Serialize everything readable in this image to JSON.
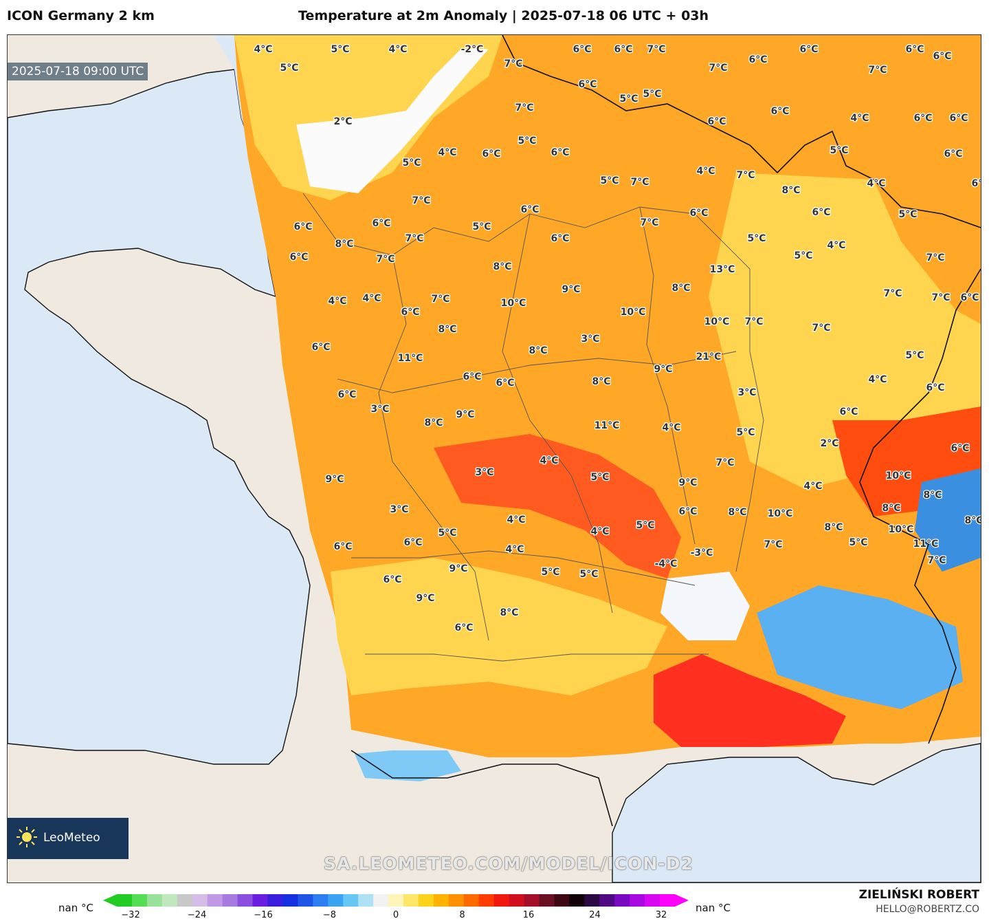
{
  "header": {
    "model_title": "ICON Germany 2 km",
    "map_title": "Temperature at 2m Anomaly | 2025-07-18 06 UTC + 03h"
  },
  "map": {
    "valid_time": "2025-07-18 09:00 UTC",
    "watermark": "SA.LEOMETEO.COM/MODEL/ICON-D2",
    "logo_text": "LeoMeteo",
    "colors": {
      "sea": "#dbe9f7",
      "land_outside": "#efe9df",
      "warm_orange": "#ffa726",
      "hot_red": "#ff3d1f",
      "cold_blue": "#3a8fe0"
    },
    "labels": [
      "4°C",
      "5°C",
      "4°C",
      "-2°C",
      "5°C",
      "2°C",
      "7°C",
      "6°C",
      "6°C",
      "7°C",
      "7°C",
      "6°C",
      "6°C",
      "7°C",
      "6°C",
      "6°C",
      "4°C",
      "6°C",
      "6°C",
      "5°C",
      "6°C",
      "6°C",
      "6°C",
      "6°C",
      "5°C",
      "5°C",
      "4°C",
      "6°C",
      "5°C",
      "6°C",
      "7°C",
      "5°C",
      "4°C",
      "5°C",
      "6°C",
      "4°C",
      "7°C",
      "8°C",
      "6°C",
      "5°C",
      "4°C",
      "5°C",
      "7°C",
      "7°C",
      "7°C",
      "6°C",
      "7°C",
      "5°C",
      "4°C",
      "6°C",
      "7°C",
      "6°C",
      "8°C",
      "6°C",
      "6°C",
      "7°C",
      "5°C",
      "6°C",
      "6°C",
      "5°C",
      "7°C",
      "7°C",
      "6°C",
      "4°C",
      "4°C",
      "6°C",
      "7°C",
      "7°C",
      "8°C",
      "10°C",
      "9°C",
      "10°C",
      "8°C",
      "13°C",
      "10°C",
      "7°C",
      "6°C",
      "11°C",
      "8°C",
      "8°C",
      "3°C",
      "9°C",
      "21°C",
      "6°C",
      "6°C",
      "8°C",
      "6°C",
      "3°C",
      "8°C",
      "9°C",
      "11°C",
      "4°C",
      "3°C",
      "5°C",
      "7°C",
      "4°C",
      "2°C",
      "6°C",
      "9°C",
      "3°C",
      "4°C",
      "5°C",
      "9°C",
      "10°C",
      "8°C",
      "6°C",
      "3°C",
      "4°C",
      "5°C",
      "4°C",
      "6°C",
      "6°C",
      "4°C",
      "5°C",
      "6°C",
      "8°C",
      "10°C",
      "7°C",
      "8°C",
      "8°C",
      "10°C",
      "5°C",
      "11°C",
      "7°C",
      "8°C",
      "-4°C",
      "-3°C",
      "5°C",
      "5°C",
      "9°C",
      "6°C",
      "9°C",
      "8°C",
      "6°C"
    ]
  },
  "colorbar": {
    "min_label": "nan °C",
    "max_label": "nan °C",
    "ticks": [
      "−32",
      "−24",
      "−16",
      "−8",
      "0",
      "8",
      "16",
      "24",
      "32"
    ],
    "colors": [
      "#22cc22",
      "#55dd55",
      "#99e299",
      "#bfe8bf",
      "#c8c8c8",
      "#d4bde6",
      "#c09ae6",
      "#a77ae0",
      "#8b4fe0",
      "#6a1fe0",
      "#3a1fdf",
      "#1430e0",
      "#1f55e6",
      "#2d7ef0",
      "#3aa3f2",
      "#66c7f5",
      "#aee0f6",
      "#f2f2f2",
      "#fff5b8",
      "#ffe66b",
      "#ffd21a",
      "#ffb300",
      "#ff9000",
      "#ff6a00",
      "#ff3d00",
      "#f2180f",
      "#d20f1f",
      "#a60f2a",
      "#6b0f22",
      "#3d0812",
      "#100208",
      "#2a0842",
      "#4f0a82",
      "#7a0ac2",
      "#aa08e0",
      "#d808f2",
      "#ff00ff"
    ]
  },
  "footer": {
    "author": "ZIELIŃSKI ROBERT",
    "contact": "HELLO@ROBERTZ.CO"
  }
}
